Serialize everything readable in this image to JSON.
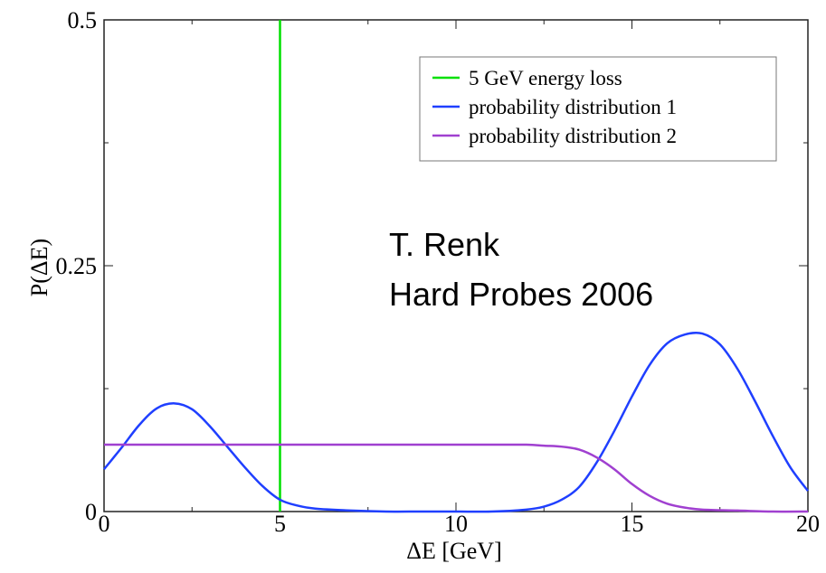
{
  "chart_data": {
    "type": "line",
    "xlabel": "ΔE [GeV]",
    "ylabel": "P(ΔE)",
    "xlim": [
      0,
      20
    ],
    "ylim": [
      0,
      0.5
    ],
    "x_ticks": [
      0,
      5,
      10,
      15,
      20
    ],
    "x_tick_labels": [
      "0",
      "5",
      "10",
      "15",
      "20"
    ],
    "y_ticks": [
      0,
      0.25,
      0.5
    ],
    "y_tick_labels": [
      "0",
      "0.25",
      "0.5"
    ],
    "grid": false,
    "legend_position": "top-right",
    "series": [
      {
        "name": "5 GeV energy loss",
        "color": "#00e000",
        "x": [
          5,
          5
        ],
        "y": [
          0,
          0.5
        ]
      },
      {
        "name": "probability distribution 1",
        "color": "#1f3fff",
        "x": [
          0,
          0.5,
          1,
          1.5,
          2,
          2.5,
          3,
          3.5,
          4,
          4.5,
          5,
          5.5,
          6,
          7,
          8,
          9,
          10,
          11,
          12,
          12.5,
          13,
          13.5,
          14,
          14.5,
          15,
          15.5,
          16,
          16.5,
          17,
          17.5,
          18,
          18.5,
          19,
          19.5,
          20
        ],
        "y": [
          0.043,
          0.065,
          0.088,
          0.105,
          0.11,
          0.104,
          0.087,
          0.066,
          0.045,
          0.026,
          0.012,
          0.006,
          0.003,
          0.001,
          0.0,
          0.0,
          0.0,
          0.0,
          0.002,
          0.005,
          0.012,
          0.025,
          0.05,
          0.082,
          0.117,
          0.149,
          0.171,
          0.18,
          0.181,
          0.17,
          0.145,
          0.112,
          0.077,
          0.045,
          0.021
        ]
      },
      {
        "name": "probability distribution 2",
        "color": "#a040d0",
        "x": [
          0,
          1,
          2,
          3,
          4,
          5,
          6,
          7,
          8,
          9,
          10,
          11,
          12,
          12.5,
          13,
          13.5,
          14,
          14.5,
          15,
          15.5,
          16,
          16.5,
          17,
          18,
          19,
          20
        ],
        "y": [
          0.068,
          0.068,
          0.068,
          0.068,
          0.068,
          0.068,
          0.068,
          0.068,
          0.068,
          0.068,
          0.068,
          0.068,
          0.068,
          0.067,
          0.066,
          0.063,
          0.055,
          0.043,
          0.028,
          0.016,
          0.008,
          0.004,
          0.002,
          0.001,
          0.0,
          0.0
        ]
      }
    ]
  },
  "annotation": {
    "line1": "T. Renk",
    "line2": "Hard Probes 2006"
  }
}
